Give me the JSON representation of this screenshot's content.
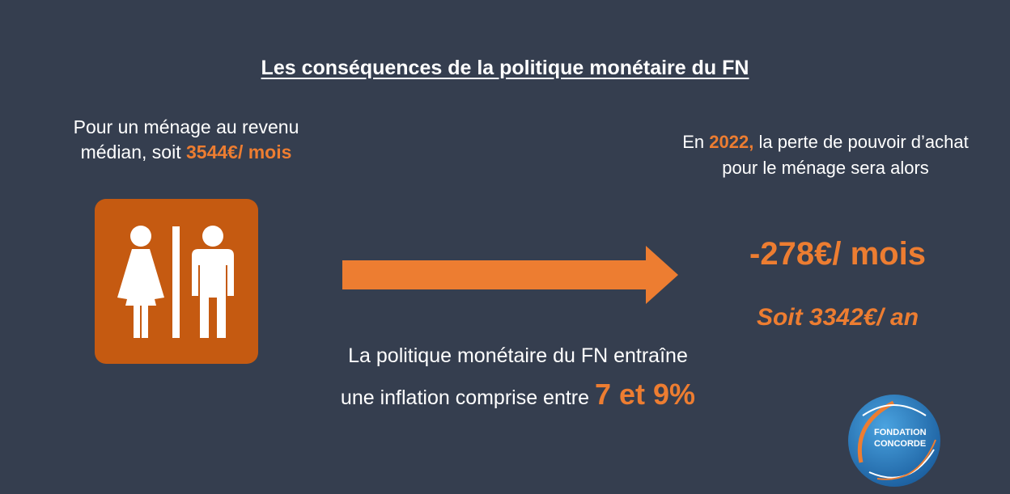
{
  "title": "Les conséquences de la politique monétaire du FN",
  "left": {
    "line1": "Pour un ménage au revenu",
    "line2_prefix": "médian, soit ",
    "income": "3544€/ mois"
  },
  "icon": {
    "name": "restroom-icon",
    "bg_color": "#c55a11"
  },
  "arrow": {
    "color": "#ed7d31"
  },
  "middle": {
    "line1": "La politique monétaire du FN entraîne",
    "line2_prefix": "une inflation comprise entre ",
    "range": "7 et 9%"
  },
  "right": {
    "prefix": "En ",
    "year": "2022,",
    "line1_suffix": " la perte de pouvoir d’achat",
    "line2": "pour le ménage sera alors",
    "monthly_loss": "-278€/ mois",
    "yearly_loss": "Soit 3342€/ an"
  },
  "logo": {
    "line1": "FONDATION",
    "line2": "CONCORDE"
  },
  "colors": {
    "background": "#353e4f",
    "accent": "#ed7d31"
  }
}
